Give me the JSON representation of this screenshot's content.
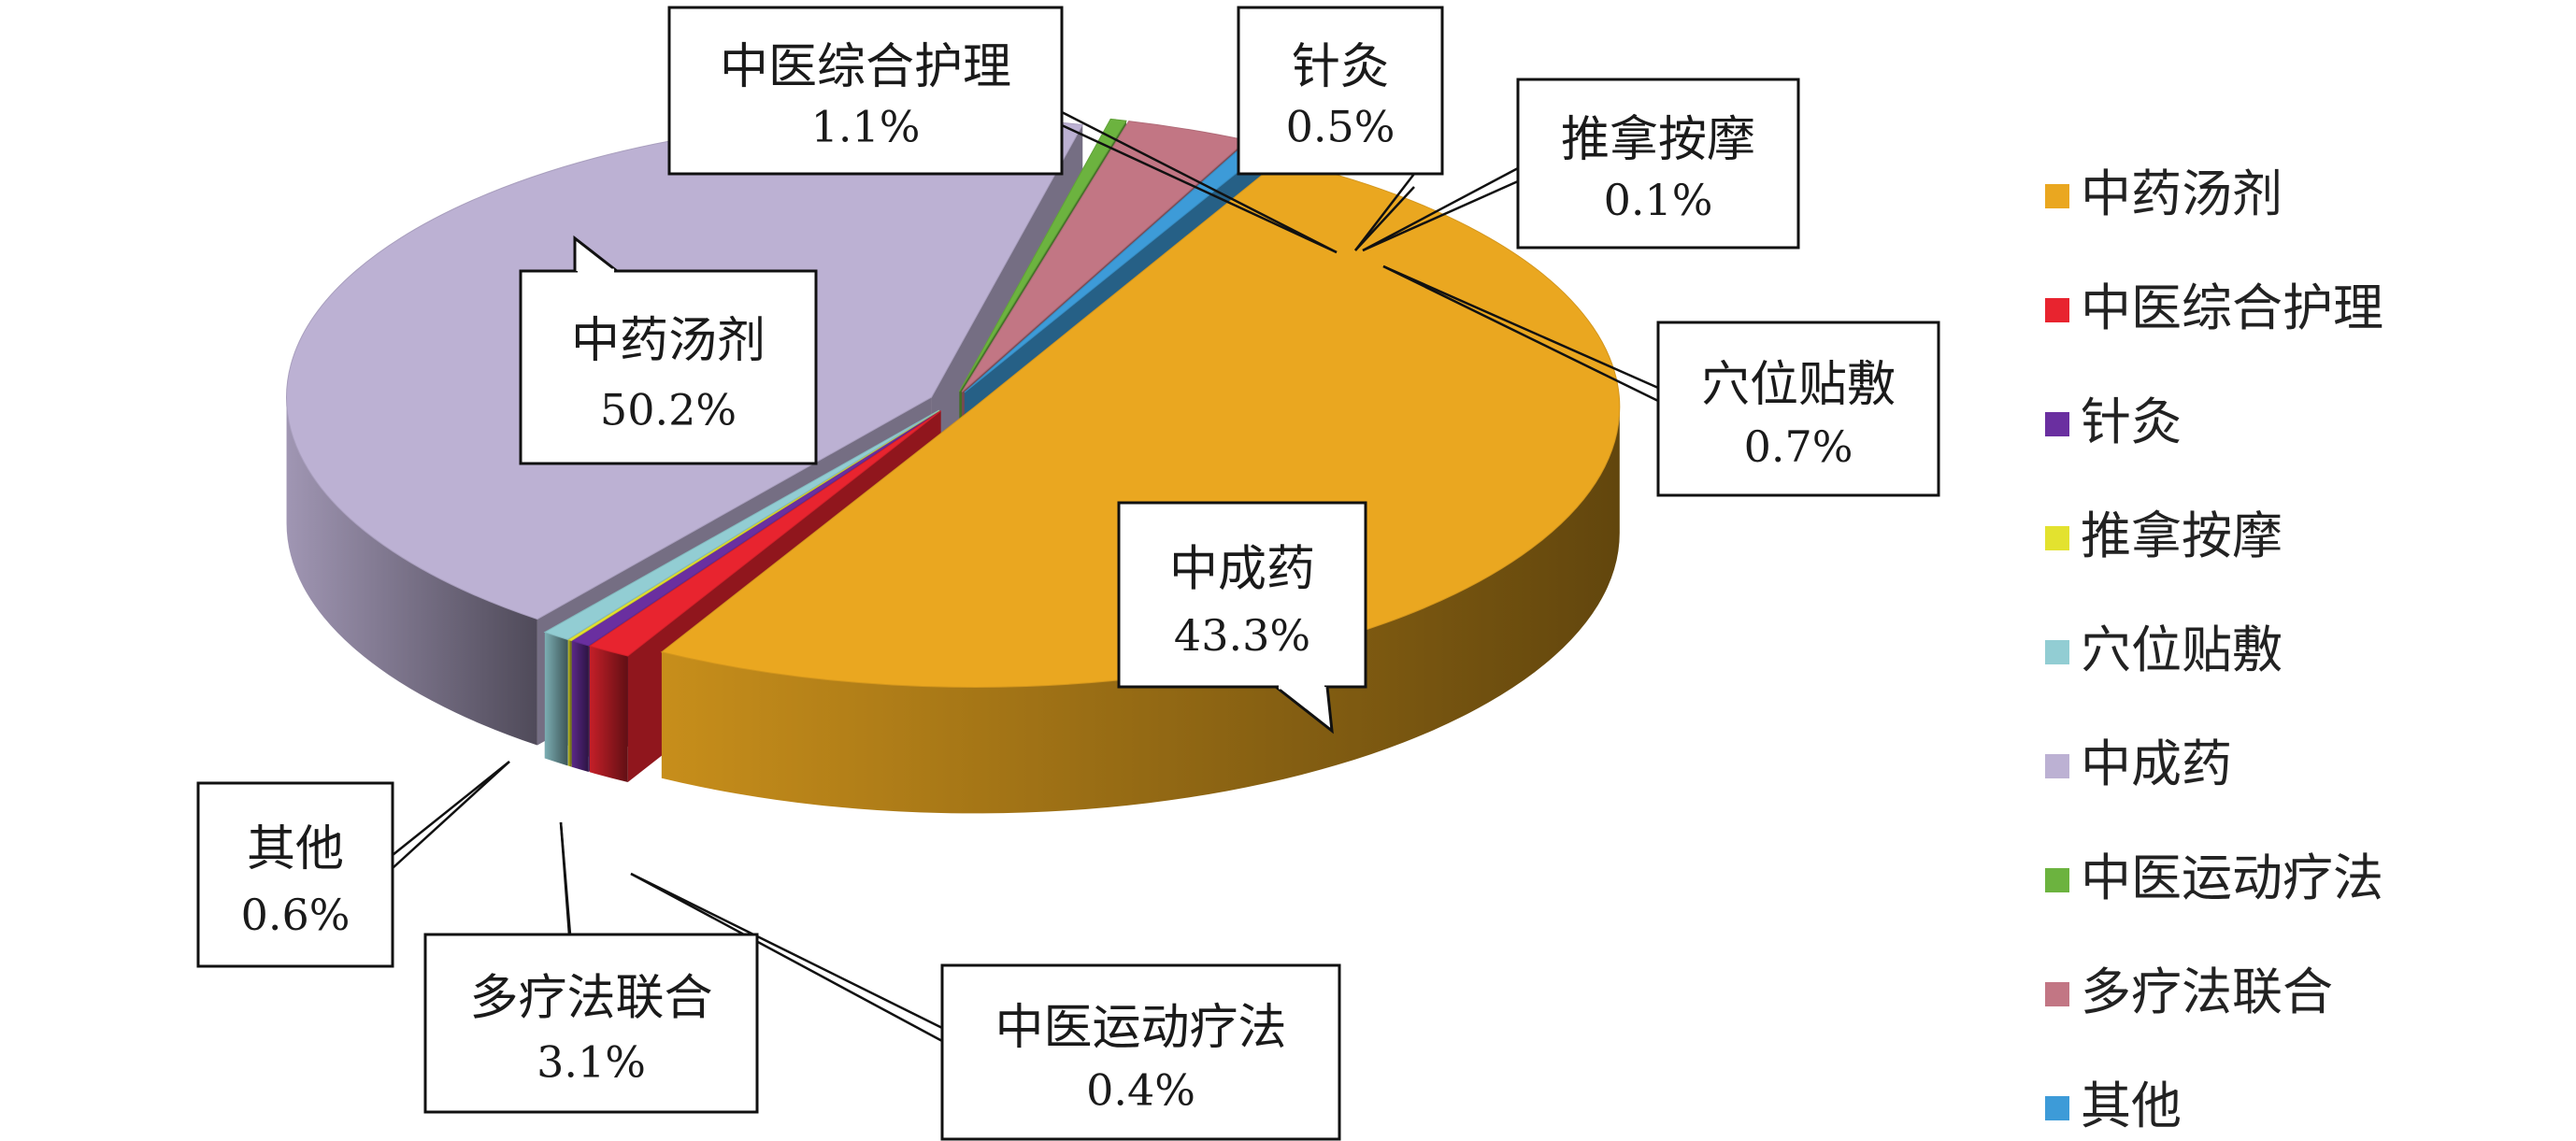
{
  "chart_data": {
    "type": "pie",
    "style": "3d-exploded",
    "legend_position": "right",
    "slices": [
      {
        "label": "中药汤剂",
        "value": 50.2,
        "value_label": "50.2%",
        "color": "#EAA720"
      },
      {
        "label": "中医综合护理",
        "value": 1.1,
        "value_label": "1.1%",
        "color": "#E8242F"
      },
      {
        "label": "针灸",
        "value": 0.5,
        "value_label": "0.5%",
        "color": "#6A2FA0"
      },
      {
        "label": "推拿按摩",
        "value": 0.1,
        "value_label": "0.1%",
        "color": "#E3E22F"
      },
      {
        "label": "穴位贴敷",
        "value": 0.7,
        "value_label": "0.7%",
        "color": "#92CDD3"
      },
      {
        "label": "中成药",
        "value": 43.3,
        "value_label": "43.3%",
        "color": "#BCB1D3"
      },
      {
        "label": "中医运动疗法",
        "value": 0.4,
        "value_label": "0.4%",
        "color": "#6CB33F"
      },
      {
        "label": "多疗法联合",
        "value": 3.1,
        "value_label": "3.1%",
        "color": "#C27684"
      },
      {
        "label": "其他",
        "value": 0.6,
        "value_label": "0.6%",
        "color": "#3D9BD8"
      }
    ]
  }
}
